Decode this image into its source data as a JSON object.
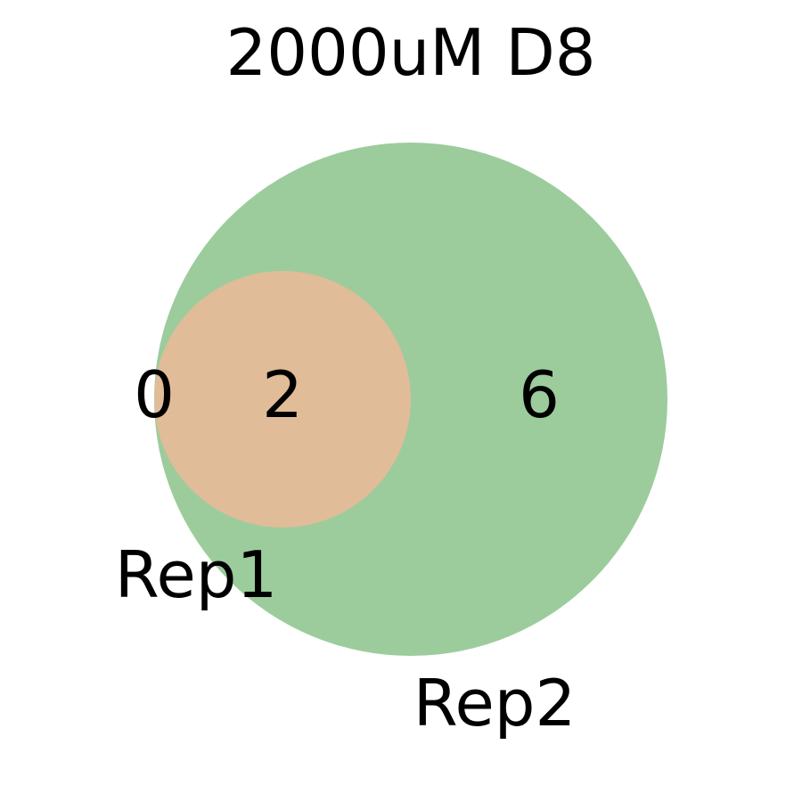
{
  "title": "2000uM D8",
  "sets": [
    {
      "name": "Rep1",
      "color": "#e0bc98"
    },
    {
      "name": "Rep2",
      "color": "#9ccc9c"
    }
  ],
  "regions": {
    "rep1_only": "0",
    "intersection": "2",
    "rep2_only": "6"
  }
}
